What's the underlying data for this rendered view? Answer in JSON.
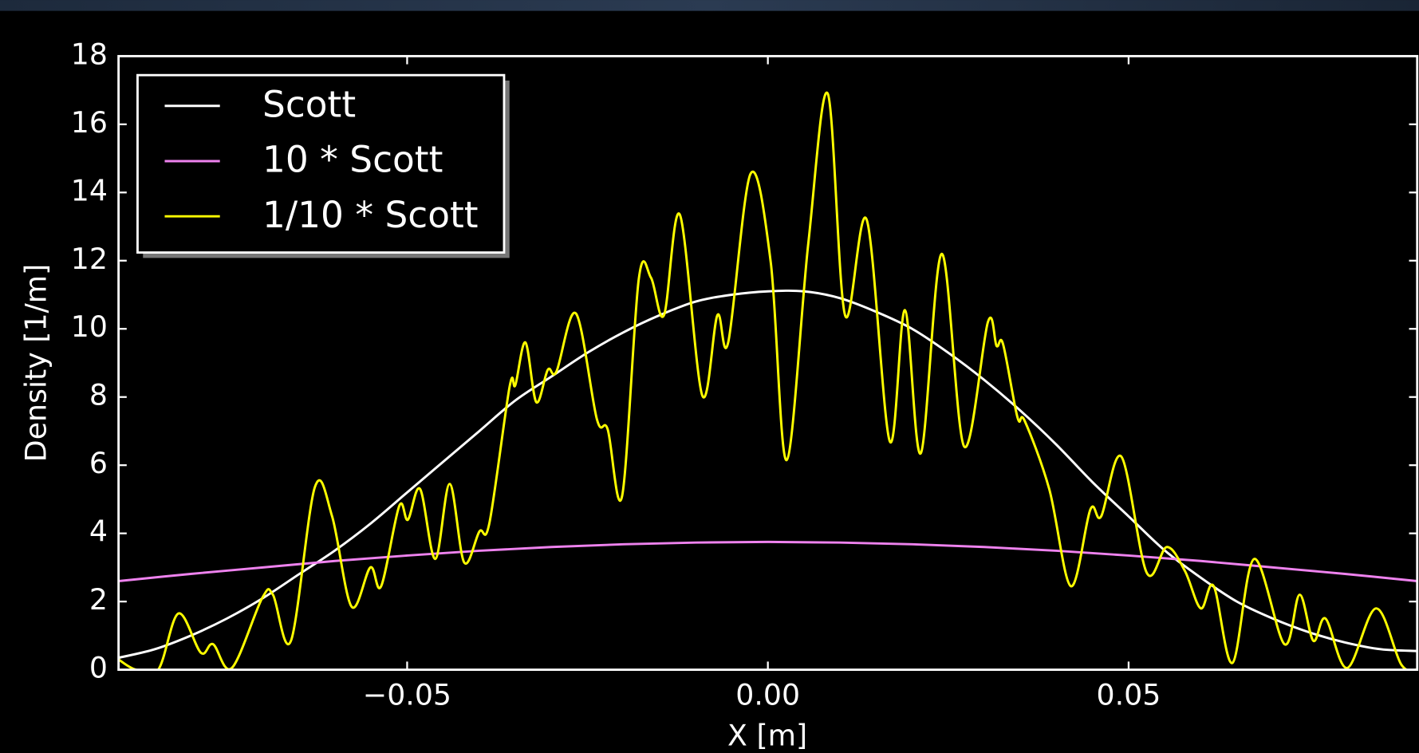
{
  "chart_data": {
    "type": "line",
    "xlabel": "X [m]",
    "ylabel": "Density [1/m]",
    "xlim": [
      -0.09,
      0.09
    ],
    "ylim": [
      0,
      18
    ],
    "xticks": [
      {
        "value": -0.05,
        "label": "−0.05"
      },
      {
        "value": 0,
        "label": "0.00"
      },
      0.05
    ],
    "yticks": [
      0,
      2,
      4,
      6,
      8,
      10,
      12,
      14,
      16,
      18
    ],
    "legend": "upper left",
    "series": [
      {
        "name": "Scott",
        "color": "#ffffff",
        "x": [
          -0.09,
          -0.085,
          -0.08,
          -0.075,
          -0.07,
          -0.065,
          -0.06,
          -0.055,
          -0.05,
          -0.045,
          -0.04,
          -0.035,
          -0.03,
          -0.025,
          -0.02,
          -0.015,
          -0.01,
          -0.005,
          0,
          0.005,
          0.01,
          0.015,
          0.02,
          0.025,
          0.03,
          0.035,
          0.04,
          0.045,
          0.05,
          0.055,
          0.06,
          0.065,
          0.07,
          0.075,
          0.08,
          0.085,
          0.09
        ],
        "values": [
          0.35,
          0.6,
          1.0,
          1.5,
          2.1,
          2.8,
          3.5,
          4.3,
          5.2,
          6.1,
          7.0,
          7.9,
          8.6,
          9.3,
          9.9,
          10.4,
          10.8,
          11.0,
          11.1,
          11.1,
          10.9,
          10.5,
          10.0,
          9.3,
          8.5,
          7.6,
          6.6,
          5.5,
          4.5,
          3.5,
          2.7,
          2.0,
          1.5,
          1.1,
          0.8,
          0.6,
          0.55
        ]
      },
      {
        "name": "10 * Scott",
        "color": "#ee82ee",
        "x": [
          -0.09,
          -0.08,
          -0.07,
          -0.06,
          -0.05,
          -0.04,
          -0.03,
          -0.02,
          -0.01,
          0,
          0.01,
          0.02,
          0.03,
          0.04,
          0.05,
          0.06,
          0.07,
          0.08,
          0.09
        ],
        "values": [
          2.6,
          2.81,
          3.0,
          3.19,
          3.35,
          3.49,
          3.6,
          3.68,
          3.73,
          3.75,
          3.73,
          3.68,
          3.6,
          3.49,
          3.35,
          3.19,
          3.0,
          2.81,
          2.6
        ]
      },
      {
        "name": "1/10 * Scott",
        "color": "#ffff00",
        "x": [
          -0.09,
          -0.0876,
          -0.0845,
          -0.0817,
          -0.0786,
          -0.0769,
          -0.0743,
          -0.0701,
          -0.0686,
          -0.0661,
          -0.0628,
          -0.0604,
          -0.0577,
          -0.0551,
          -0.0536,
          -0.0511,
          -0.0499,
          -0.0482,
          -0.0461,
          -0.0441,
          -0.0421,
          -0.04,
          -0.0386,
          -0.0358,
          -0.035,
          -0.0336,
          -0.0321,
          -0.0305,
          -0.0293,
          -0.0266,
          -0.0237,
          -0.0222,
          -0.0202,
          -0.0179,
          -0.0162,
          -0.0144,
          -0.0122,
          -0.0091,
          -0.007,
          -0.0055,
          -0.0024,
          0.0004,
          0.0026,
          0.0056,
          0.0083,
          0.0107,
          0.0137,
          0.0169,
          0.019,
          0.0212,
          0.0241,
          0.0272,
          0.0305,
          0.0317,
          0.0326,
          0.0346,
          0.0356,
          0.039,
          0.042,
          0.0447,
          0.0462,
          0.049,
          0.0525,
          0.0553,
          0.0578,
          0.06,
          0.0618,
          0.0644,
          0.0674,
          0.0716,
          0.0737,
          0.0756,
          0.0773,
          0.0803,
          0.0843,
          0.0878,
          0.09
        ],
        "values": [
          0.3,
          0,
          0,
          1.65,
          0.5,
          0.75,
          0.05,
          2.1,
          2.2,
          0.85,
          5.35,
          4.5,
          1.85,
          3.0,
          2.45,
          4.8,
          4.4,
          5.3,
          3.25,
          5.45,
          3.15,
          4.05,
          4.3,
          8.3,
          8.35,
          9.6,
          7.85,
          8.8,
          8.75,
          10.45,
          7.35,
          7.05,
          5.1,
          11.45,
          11.5,
          10.4,
          13.35,
          8.05,
          10.4,
          9.6,
          14.55,
          11.95,
          6.15,
          12.5,
          16.9,
          10.4,
          13.2,
          6.7,
          10.55,
          6.35,
          12.2,
          6.55,
          10.2,
          9.5,
          9.55,
          7.4,
          7.3,
          5.3,
          2.45,
          4.7,
          4.5,
          6.25,
          2.85,
          3.6,
          2.9,
          1.8,
          2.45,
          0.2,
          3.25,
          0.75,
          2.2,
          0.85,
          1.5,
          0.05,
          1.8,
          0.15,
          0
        ]
      }
    ]
  }
}
